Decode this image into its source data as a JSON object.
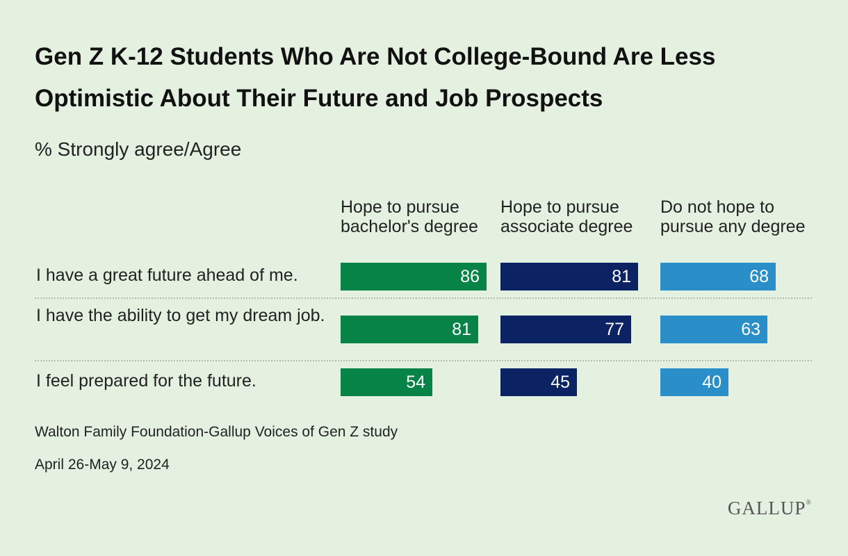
{
  "chart_data": {
    "type": "bar",
    "title": "Gen Z K-12 Students Who Are Not College-Bound Are Less Optimistic About Their Future and Job Prospects",
    "subtitle": "% Strongly agree/Agree",
    "categories": [
      "I have a great future ahead of me.",
      "I have the ability to get my dream job.",
      "I feel prepared for the future."
    ],
    "series": [
      {
        "name": "Hope to pursue bachelor's degree",
        "color": "#078347",
        "values": [
          86,
          81,
          54
        ]
      },
      {
        "name": "Hope to pursue associate degree",
        "color": "#0b2263",
        "values": [
          81,
          77,
          45
        ]
      },
      {
        "name": "Do not hope to pursue any degree",
        "color": "#2a8ec9",
        "values": [
          68,
          63,
          40
        ]
      }
    ],
    "xlim": [
      0,
      100
    ],
    "grid": false,
    "legend": "column headers"
  },
  "source": "Walton Family Foundation-Gallup Voices of Gen Z study",
  "date": "April 26-May 9, 2024",
  "logo": "GALLUP"
}
